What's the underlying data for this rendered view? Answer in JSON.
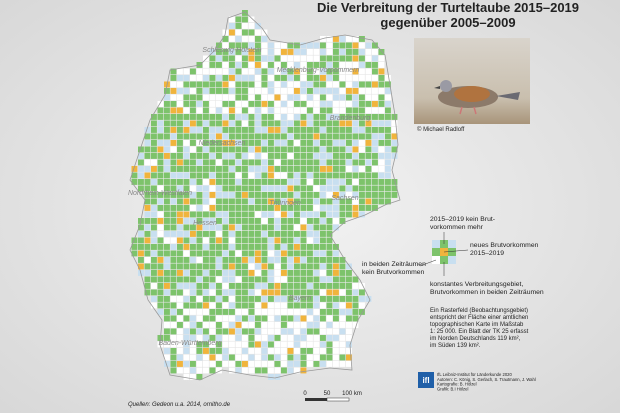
{
  "title": [
    "Die Verbreitung der Turteltaube 2015–2019",
    "gegenüber 2005–2009"
  ],
  "photo_credit": "© Michael Radloff",
  "legend": {
    "lost": [
      "2015–2019 kein Brut-",
      "vorkommen mehr"
    ],
    "new": [
      "neues Brutvorkommen",
      "2015–2019"
    ],
    "none": [
      "in beiden Zeiträumen",
      "kein Brutvorkommen"
    ],
    "constant": [
      "konstantes Verbreitungsgebiet,",
      "Brutvorkommen in beiden Zeiträumen"
    ]
  },
  "note": [
    "Ein Rasterfeld (Beobachtungsgebiet)",
    "entspricht der Fläche einer amtlichen",
    "topographischen Karte im Maßstab",
    "1: 25 000. Ein Blatt der TK 25 erfasst",
    "im Norden Deutschlands 119 km²,",
    "im Süden 139 km²."
  ],
  "logo": {
    "mark": "ifl",
    "lines": [
      "IfL Leibniz-Institut für Länderkunde 2020",
      "Autoren: C. König, S. Gerlach, S. Trautmann, J. Wahl",
      "Kartografie: B. Hölzel",
      "Grafik: B.I Hölzel"
    ]
  },
  "source": "Quellen: Gedeon u.a. 2014, ornitho.de",
  "scale": [
    "0",
    "50",
    "100 km"
  ],
  "regions": [
    "Schleswig-Holstein",
    "Mecklenburg-Vorpommern",
    "Niedersachsen",
    "Brandenburg",
    "Nordrhein-Westfalen",
    "Sachsen",
    "Hessen",
    "Thüringen",
    "Bayern",
    "Baden-Württemberg"
  ]
}
